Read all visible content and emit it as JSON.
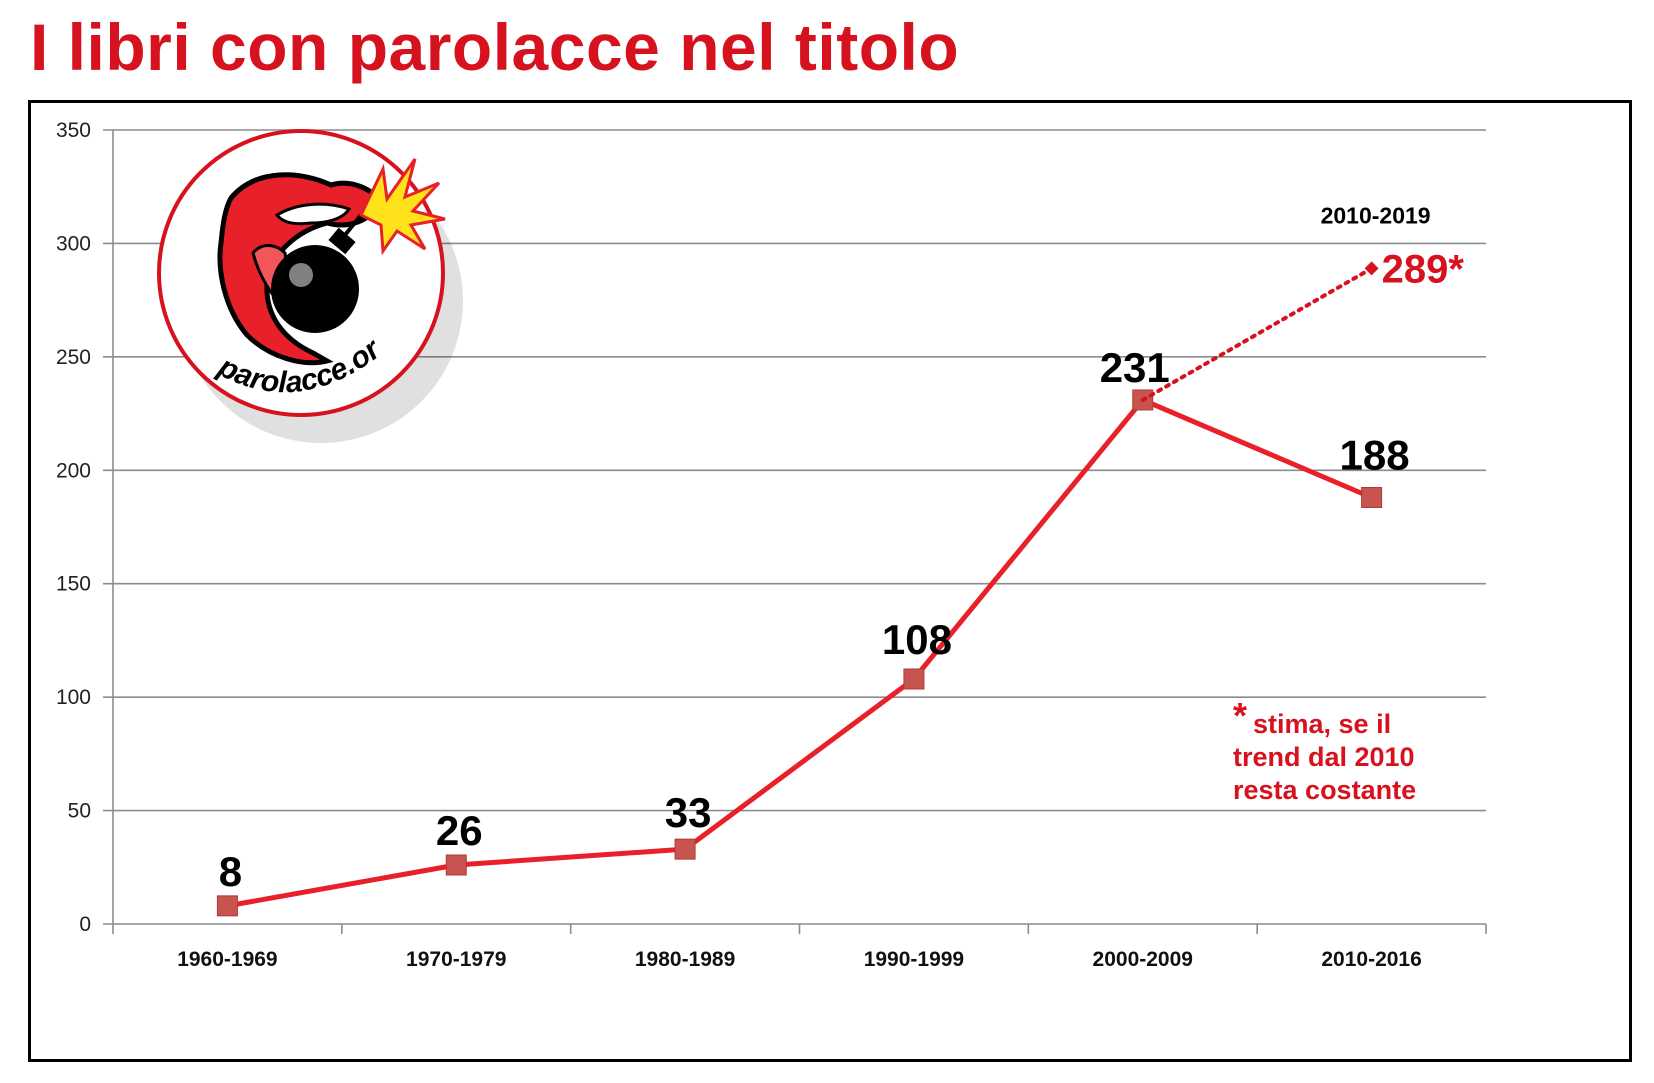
{
  "title": "I libri con parolacce nel titolo",
  "colors": {
    "accent": "#d7121f",
    "line": "#e8202a",
    "marker": "#c85450",
    "grid": "#8c8c8c"
  },
  "logo": {
    "text": "parolacce.org",
    "icon": "mouth-bomb-icon"
  },
  "chart_data": {
    "type": "line",
    "categories": [
      "1960-1969",
      "1970-1979",
      "1980-1989",
      "1990-1999",
      "2000-2009",
      "2010-2016"
    ],
    "values": [
      8,
      26,
      33,
      108,
      231,
      188
    ],
    "data_labels": [
      "8",
      "26",
      "33",
      "108",
      "231",
      "188"
    ],
    "ylim": [
      0,
      350
    ],
    "yticks": [
      0,
      50,
      100,
      150,
      200,
      250,
      300,
      350
    ],
    "grid": true,
    "projection": {
      "from_category": "2000-2009",
      "from_value": 231,
      "value": 289,
      "label": "289*",
      "period_label": "2010-2019",
      "style": "dotted"
    },
    "note": {
      "marker": "*",
      "lines": [
        "stima, se il",
        "trend dal 2010",
        "resta costante"
      ]
    }
  }
}
